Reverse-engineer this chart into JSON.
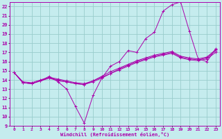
{
  "xlabel": "Windchill (Refroidissement éolien,°C)",
  "bg_color": "#c5ecee",
  "grid_color": "#99cccc",
  "line_color": "#aa00aa",
  "xlim": [
    0,
    23
  ],
  "ylim": [
    9,
    22.5
  ],
  "xticks": [
    0,
    1,
    2,
    3,
    4,
    5,
    6,
    7,
    8,
    9,
    10,
    11,
    12,
    13,
    14,
    15,
    16,
    17,
    18,
    19,
    20,
    21,
    22,
    23
  ],
  "yticks": [
    9,
    10,
    11,
    12,
    13,
    14,
    15,
    16,
    17,
    18,
    19,
    20,
    21,
    22
  ],
  "lines": [
    {
      "x": [
        0,
        1,
        2,
        3,
        4,
        5,
        6,
        7,
        8,
        9,
        10,
        11,
        12,
        13,
        14,
        15,
        16,
        17,
        18,
        19,
        20,
        21,
        22,
        23
      ],
      "y": [
        14.8,
        13.7,
        13.6,
        13.9,
        14.4,
        13.8,
        13.0,
        11.1,
        9.3,
        12.3,
        14.2,
        15.5,
        16.0,
        17.2,
        17.0,
        18.5,
        19.2,
        21.5,
        22.2,
        22.5,
        19.3,
        16.3,
        16.0,
        17.4
      ]
    },
    {
      "x": [
        0,
        1,
        2,
        3,
        4,
        5,
        6,
        7,
        8,
        9,
        10,
        11,
        12,
        13,
        14,
        15,
        16,
        17,
        18,
        19,
        20,
        21,
        22,
        23
      ],
      "y": [
        14.8,
        13.7,
        13.6,
        13.9,
        14.2,
        14.0,
        13.8,
        13.6,
        13.5,
        13.8,
        14.2,
        14.7,
        15.2,
        15.6,
        16.0,
        16.3,
        16.6,
        16.8,
        17.0,
        16.5,
        16.3,
        16.2,
        16.4,
        17.2
      ]
    },
    {
      "x": [
        0,
        1,
        2,
        3,
        4,
        5,
        6,
        7,
        8,
        9,
        10,
        11,
        12,
        13,
        14,
        15,
        16,
        17,
        18,
        19,
        20,
        21,
        22,
        23
      ],
      "y": [
        14.8,
        13.8,
        13.7,
        14.0,
        14.3,
        14.1,
        13.9,
        13.7,
        13.6,
        13.9,
        14.4,
        14.9,
        15.3,
        15.7,
        16.1,
        16.4,
        16.7,
        16.9,
        17.1,
        16.6,
        16.4,
        16.3,
        16.5,
        17.3
      ]
    },
    {
      "x": [
        0,
        1,
        2,
        3,
        4,
        5,
        6,
        7,
        8,
        9,
        10,
        11,
        12,
        13,
        14,
        15,
        16,
        17,
        18,
        19,
        20,
        21,
        22,
        23
      ],
      "y": [
        14.8,
        13.7,
        13.6,
        13.9,
        14.2,
        13.9,
        13.8,
        13.6,
        13.5,
        13.9,
        14.3,
        14.7,
        15.1,
        15.5,
        15.9,
        16.2,
        16.5,
        16.7,
        16.9,
        16.4,
        16.2,
        16.1,
        16.3,
        17.0
      ]
    }
  ]
}
